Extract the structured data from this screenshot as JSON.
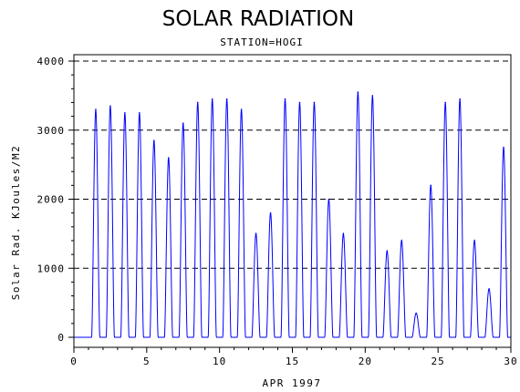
{
  "chart_data": {
    "type": "line",
    "title": "SOLAR RADIATION",
    "subtitle": "STATION=HOGI",
    "xlabel": "APR 1997",
    "ylabel": "Solar Rad. KJoules/M2",
    "xlim": [
      0,
      30
    ],
    "ylim": [
      0,
      4000
    ],
    "xticks": [
      0,
      5,
      10,
      15,
      20,
      25,
      30
    ],
    "yticks": [
      0,
      1000,
      2000,
      3000,
      4000
    ],
    "xtick_labels": [
      "0",
      "5",
      "10",
      "15",
      "20",
      "25",
      "30"
    ],
    "ytick_labels": [
      "0",
      "1000",
      "2000",
      "3000",
      "4000"
    ],
    "grid": "horizontal dashed at y ticks",
    "series_color": "#0000ff",
    "daily_peaks": [
      {
        "day": 1,
        "peak": 3300
      },
      {
        "day": 2,
        "peak": 3350
      },
      {
        "day": 3,
        "peak": 3250
      },
      {
        "day": 4,
        "peak": 3250
      },
      {
        "day": 5,
        "peak": 2850
      },
      {
        "day": 6,
        "peak": 2600
      },
      {
        "day": 7,
        "peak": 3100
      },
      {
        "day": 8,
        "peak": 3400
      },
      {
        "day": 9,
        "peak": 3450
      },
      {
        "day": 10,
        "peak": 3450
      },
      {
        "day": 11,
        "peak": 3300
      },
      {
        "day": 12,
        "peak": 1500
      },
      {
        "day": 13,
        "peak": 1800
      },
      {
        "day": 14,
        "peak": 3450
      },
      {
        "day": 15,
        "peak": 3400
      },
      {
        "day": 16,
        "peak": 3400
      },
      {
        "day": 17,
        "peak": 2000
      },
      {
        "day": 18,
        "peak": 1500
      },
      {
        "day": 19,
        "peak": 3550
      },
      {
        "day": 20,
        "peak": 3500
      },
      {
        "day": 21,
        "peak": 1250
      },
      {
        "day": 22,
        "peak": 1400
      },
      {
        "day": 23,
        "peak": 350
      },
      {
        "day": 24,
        "peak": 2200
      },
      {
        "day": 25,
        "peak": 3400
      },
      {
        "day": 26,
        "peak": 3450
      },
      {
        "day": 27,
        "peak": 1400
      },
      {
        "day": 28,
        "peak": 700
      },
      {
        "day": 29,
        "peak": 2750
      }
    ]
  }
}
